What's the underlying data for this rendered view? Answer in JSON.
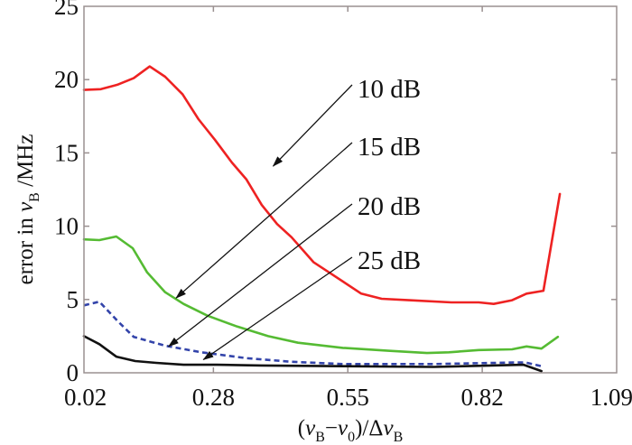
{
  "chart_data": {
    "type": "line",
    "title": "",
    "xlabel": {
      "prefix": "(",
      "var1": "ν",
      "sub1": "B",
      "minus": "−",
      "var2": "ν",
      "sub2": "0",
      "suffix": ")/Δ",
      "var3": "ν",
      "sub3": "B"
    },
    "ylabel": {
      "prefix": "error in ",
      "var": "ν",
      "sub": "B",
      "suffix": " /MHz"
    },
    "xlim": [
      0.02,
      1.09
    ],
    "ylim": [
      0,
      25
    ],
    "xticks": [
      0.02,
      0.28,
      0.55,
      0.82,
      1.09
    ],
    "xtick_labels": [
      "0.02",
      "0.28",
      "0.55",
      "0.82",
      "1.09"
    ],
    "yticks": [
      0,
      5,
      10,
      15,
      20,
      25
    ],
    "ytick_labels": [
      "0",
      "5",
      "10",
      "15",
      "20",
      "25"
    ],
    "grid": false,
    "legend": "annotated arrows (upper-middle)",
    "series": [
      {
        "name": "10 dB",
        "color": "#ee2222",
        "dashed": false,
        "x": [
          0.02,
          0.054,
          0.087,
          0.12,
          0.152,
          0.183,
          0.218,
          0.25,
          0.283,
          0.317,
          0.346,
          0.377,
          0.408,
          0.437,
          0.481,
          0.517,
          0.577,
          0.618,
          0.673,
          0.758,
          0.813,
          0.843,
          0.88,
          0.909,
          0.943,
          0.976
        ],
        "y": [
          19.3,
          19.35,
          19.65,
          20.1,
          20.9,
          20.2,
          19.0,
          17.3,
          15.9,
          14.35,
          13.2,
          11.45,
          10.15,
          9.25,
          7.55,
          6.75,
          5.4,
          5.05,
          4.95,
          4.8,
          4.8,
          4.7,
          4.95,
          5.4,
          5.6,
          12.2
        ]
      },
      {
        "name": "15 dB",
        "color": "#55bb33",
        "dashed": false,
        "x": [
          0.02,
          0.051,
          0.085,
          0.118,
          0.147,
          0.183,
          0.22,
          0.268,
          0.328,
          0.39,
          0.45,
          0.54,
          0.631,
          0.709,
          0.753,
          0.813,
          0.88,
          0.909,
          0.939,
          0.972
        ],
        "y": [
          9.1,
          9.05,
          9.3,
          8.5,
          6.85,
          5.5,
          4.7,
          3.9,
          3.15,
          2.5,
          2.05,
          1.7,
          1.5,
          1.35,
          1.4,
          1.55,
          1.6,
          1.8,
          1.65,
          2.45
        ]
      },
      {
        "name": "20 dB",
        "color": "#3344aa",
        "dashed": true,
        "x": [
          0.02,
          0.051,
          0.087,
          0.12,
          0.183,
          0.256,
          0.346,
          0.437,
          0.54,
          0.722,
          0.885,
          0.907,
          0.939
        ],
        "y": [
          4.6,
          4.85,
          3.55,
          2.45,
          1.85,
          1.4,
          1.0,
          0.75,
          0.6,
          0.6,
          0.7,
          0.7,
          0.45
        ]
      },
      {
        "name": "25 dB",
        "color": "#111111",
        "dashed": false,
        "x": [
          0.02,
          0.051,
          0.085,
          0.123,
          0.165,
          0.22,
          0.287,
          0.377,
          0.54,
          0.722,
          0.903,
          0.939
        ],
        "y": [
          2.5,
          1.95,
          1.1,
          0.8,
          0.68,
          0.55,
          0.55,
          0.5,
          0.45,
          0.4,
          0.55,
          0.12
        ]
      }
    ],
    "annotations": [
      {
        "text": "10 dB",
        "target_series": "10 dB",
        "target_x": 0.4,
        "target_y": 14.1
      },
      {
        "text": "15 dB",
        "target_series": "15 dB",
        "target_x": 0.205,
        "target_y": 5.1
      },
      {
        "text": "20 dB",
        "target_series": "20 dB",
        "target_x": 0.19,
        "target_y": 1.8
      },
      {
        "text": "25 dB",
        "target_series": "25 dB",
        "target_x": 0.26,
        "target_y": 0.9
      }
    ]
  }
}
